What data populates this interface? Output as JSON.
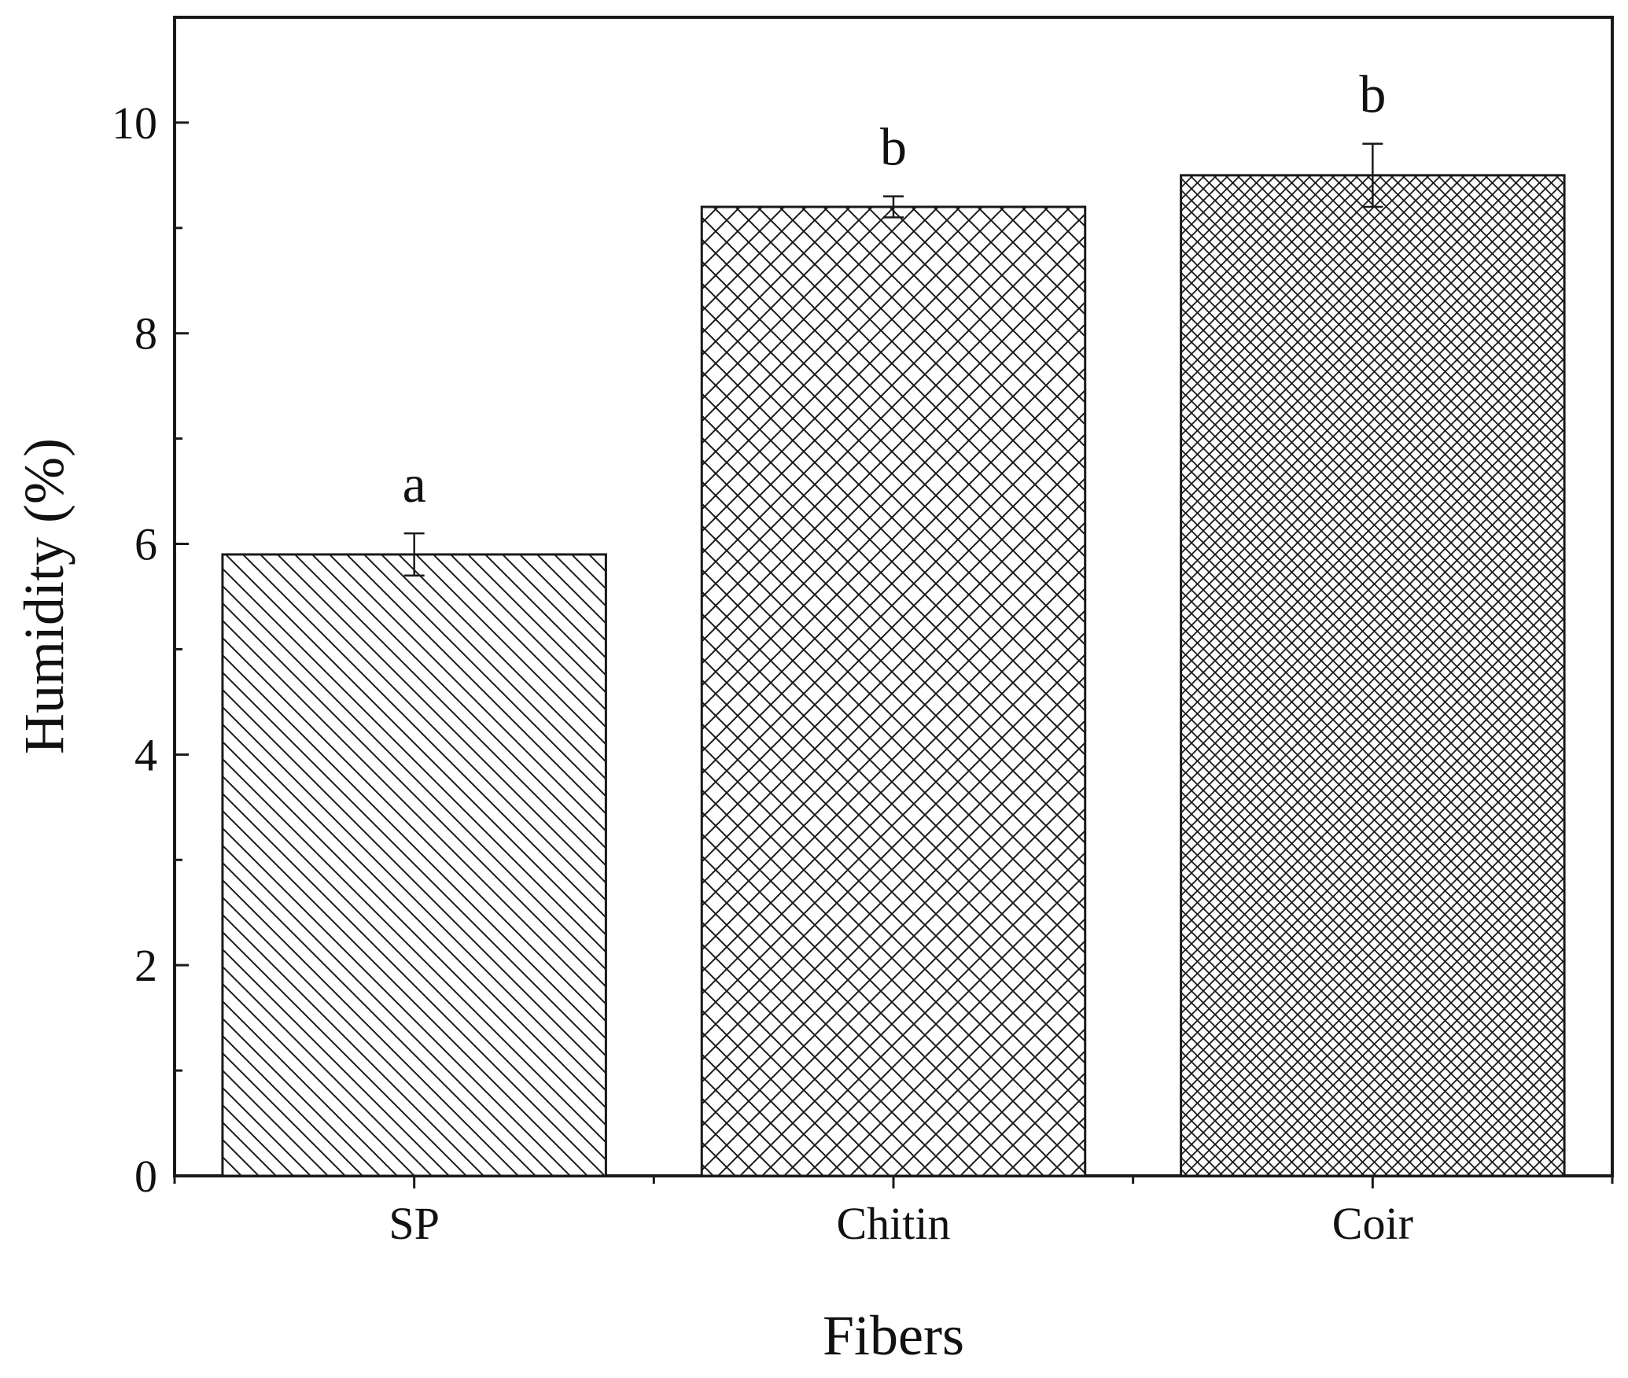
{
  "chart_data": {
    "type": "bar",
    "categories": [
      "SP",
      "Chitin",
      "Coir"
    ],
    "values": [
      5.9,
      9.2,
      9.5
    ],
    "errors": [
      0.2,
      0.1,
      0.3
    ],
    "significance_labels": [
      "a",
      "b",
      "b"
    ],
    "xlabel": "Fibers",
    "ylabel": "Humidity (%)",
    "ylim": [
      0,
      11
    ],
    "yticks": [
      "0",
      "2",
      "4",
      "6",
      "8",
      "10"
    ],
    "patterns": [
      "diagonal-hatch",
      "cross-hatch",
      "fine-cross-hatch"
    ],
    "grid": false,
    "bar_fill": "#ffffff",
    "line_color": "#1a1a1a"
  }
}
